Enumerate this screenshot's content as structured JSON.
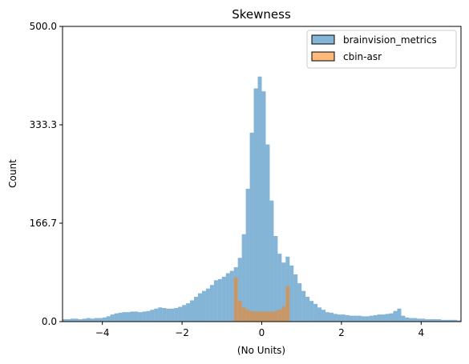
{
  "chart_data": {
    "type": "histogram",
    "title": "Skewness",
    "xlabel": "(No Units)",
    "ylabel": "Count",
    "xlim": [
      -5,
      5
    ],
    "ylim": [
      0,
      500
    ],
    "xticks": [
      -4,
      -2,
      0,
      2,
      4
    ],
    "xtick_labels": [
      "−4",
      "−2",
      "0",
      "2",
      "4"
    ],
    "yticks": [
      0,
      166.7,
      333.3,
      500
    ],
    "ytick_labels": [
      "0.0",
      "166.7",
      "333.3",
      "500.0"
    ],
    "grid": false,
    "legend_position": "top-right",
    "bin_width": 0.1,
    "series": [
      {
        "name": "brainvision_metrics",
        "color": "#1f77b4",
        "alpha": 0.55,
        "x": [
          -4.95,
          -4.85,
          -4.75,
          -4.65,
          -4.55,
          -4.45,
          -4.35,
          -4.25,
          -4.15,
          -4.05,
          -3.95,
          -3.85,
          -3.75,
          -3.65,
          -3.55,
          -3.45,
          -3.35,
          -3.25,
          -3.15,
          -3.05,
          -2.95,
          -2.85,
          -2.75,
          -2.65,
          -2.55,
          -2.45,
          -2.35,
          -2.25,
          -2.15,
          -2.05,
          -1.95,
          -1.85,
          -1.75,
          -1.65,
          -1.55,
          -1.45,
          -1.35,
          -1.25,
          -1.15,
          -1.05,
          -0.95,
          -0.85,
          -0.75,
          -0.65,
          -0.55,
          -0.45,
          -0.35,
          -0.25,
          -0.15,
          -0.05,
          0.05,
          0.15,
          0.25,
          0.35,
          0.45,
          0.55,
          0.65,
          0.75,
          0.85,
          0.95,
          1.05,
          1.15,
          1.25,
          1.35,
          1.45,
          1.55,
          1.65,
          1.75,
          1.85,
          1.95,
          2.05,
          2.15,
          2.25,
          2.35,
          2.45,
          2.55,
          2.65,
          2.75,
          2.85,
          2.95,
          3.05,
          3.15,
          3.25,
          3.35,
          3.45,
          3.55,
          3.65,
          3.75,
          3.85,
          3.95,
          4.05,
          4.15,
          4.25,
          4.35,
          4.45,
          4.55,
          4.65,
          4.75,
          4.85,
          4.95
        ],
        "values": [
          4,
          4,
          5,
          5,
          4,
          5,
          6,
          5,
          6,
          6,
          7,
          9,
          12,
          14,
          15,
          16,
          16,
          17,
          17,
          16,
          17,
          18,
          20,
          22,
          24,
          23,
          22,
          22,
          23,
          25,
          28,
          31,
          36,
          42,
          48,
          52,
          56,
          62,
          70,
          72,
          76,
          82,
          86,
          92,
          108,
          148,
          225,
          320,
          395,
          415,
          390,
          300,
          205,
          145,
          115,
          100,
          110,
          95,
          80,
          65,
          52,
          42,
          35,
          30,
          24,
          20,
          16,
          15,
          13,
          12,
          12,
          11,
          10,
          10,
          10,
          9,
          9,
          10,
          11,
          12,
          12,
          13,
          14,
          18,
          22,
          10,
          7,
          6,
          6,
          5,
          5,
          4,
          4,
          4,
          4,
          3,
          3,
          3,
          3,
          2
        ]
      },
      {
        "name": "cbin-asr",
        "color": "#ff7f0e",
        "alpha": 0.55,
        "x": [
          -0.65,
          -0.55,
          -0.45,
          -0.35,
          -0.25,
          -0.15,
          -0.05,
          0.05,
          0.15,
          0.25,
          0.35,
          0.45,
          0.55,
          0.65
        ],
        "values": [
          75,
          35,
          24,
          20,
          18,
          17,
          17,
          17,
          17,
          17,
          18,
          20,
          26,
          60
        ]
      }
    ]
  }
}
